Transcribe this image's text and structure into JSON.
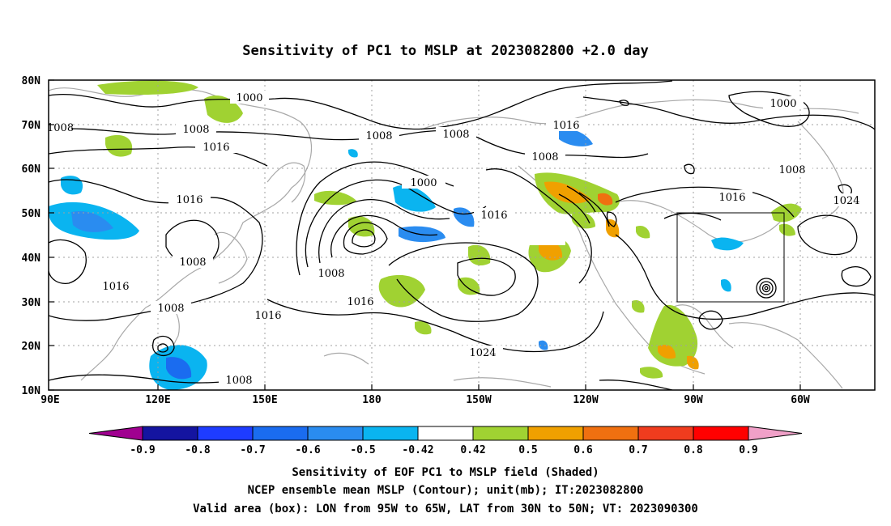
{
  "title": "Sensitivity of PC1 to MSLP at 2023082800 +2.0 day",
  "lat_ticks": [
    "80N",
    "70N",
    "60N",
    "50N",
    "40N",
    "30N",
    "20N",
    "10N"
  ],
  "lon_ticks": [
    "90E",
    "120E",
    "150E",
    "180",
    "150W",
    "120W",
    "90W",
    "60W"
  ],
  "contour_labels": [
    "1000",
    "1000",
    "1000",
    "1008",
    "1008",
    "1008",
    "1008",
    "1008",
    "1008",
    "1008",
    "1008",
    "1008",
    "1008",
    "1016",
    "1016",
    "1016",
    "1016",
    "1016",
    "1016",
    "1016",
    "1016",
    "1024"
  ],
  "colorbar": {
    "labels": [
      "-0.9",
      "-0.8",
      "-0.7",
      "-0.6",
      "-0.5",
      "-0.42",
      "0.42",
      "0.5",
      "0.6",
      "0.7",
      "0.8",
      "0.9"
    ],
    "colors": [
      "#a00090",
      "#1414a0",
      "#1e3cff",
      "#1a6cf0",
      "#2a8cf0",
      "#0ab4f0",
      "#ffffff",
      "#a0d232",
      "#f0a000",
      "#f07010",
      "#f03c1e",
      "#ff0000",
      "#f0a0c8"
    ]
  },
  "caption": [
    "Sensitivity of EOF PC1 to MSLP field (Shaded)",
    "NCEP ensemble mean MSLP (Contour); unit(mb); IT:2023082800",
    "Valid area (box): LON from 95W to 65W, LAT from 30N to 50N; VT: 2023090300"
  ],
  "valid_box": {
    "lon_min": "95W",
    "lon_max": "65W",
    "lat_min": "30N",
    "lat_max": "50N"
  }
}
